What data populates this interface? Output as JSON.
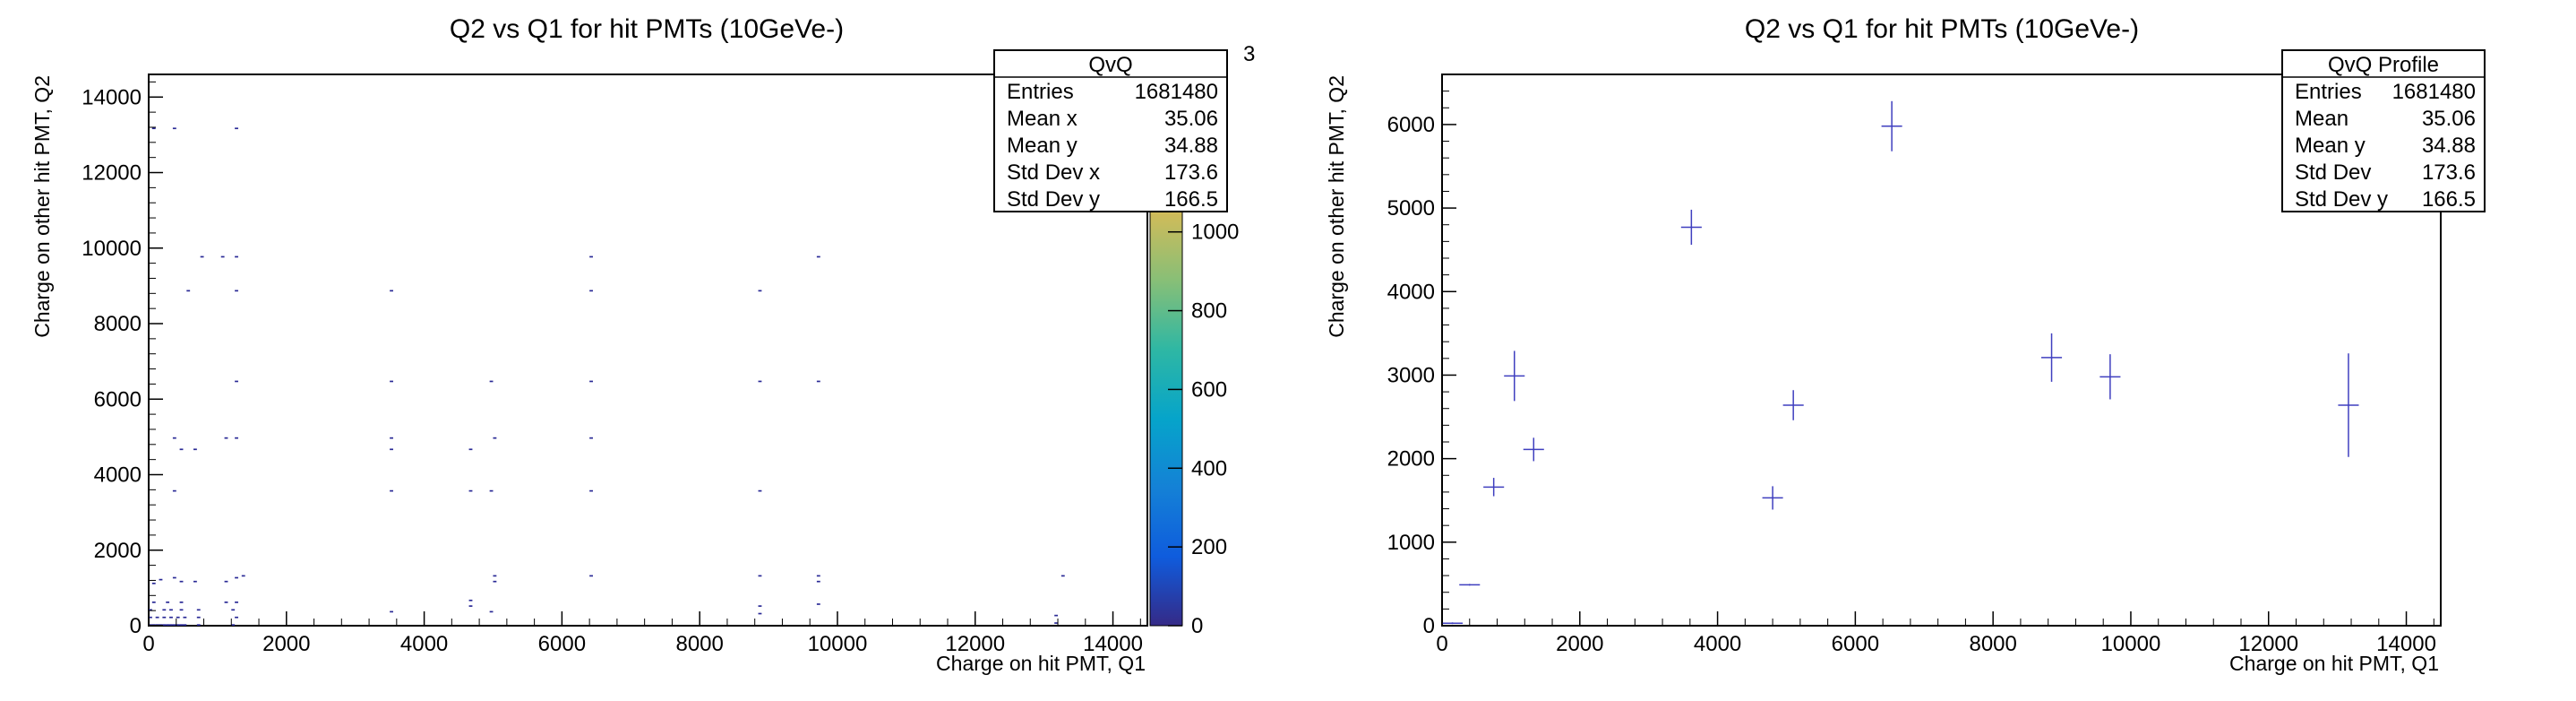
{
  "chart_data": [
    {
      "type": "heatmap",
      "title": "Q2 vs Q1 for hit PMTs (10GeVe-)",
      "xlabel": "Charge on hit PMT, Q1",
      "ylabel": "Charge on other hit PMT, Q2",
      "xlim": [
        0,
        14500
      ],
      "ylim": [
        0,
        14600
      ],
      "x_ticks": [
        0,
        2000,
        4000,
        6000,
        8000,
        10000,
        12000,
        14000
      ],
      "y_ticks": [
        0,
        2000,
        4000,
        6000,
        8000,
        10000,
        12000,
        14000
      ],
      "grid": false,
      "colorbar": {
        "ticks": [
          "0",
          "200",
          "400",
          "600",
          "800",
          "1000"
        ],
        "exponent_label": "3",
        "palette": [
          "#352a87",
          "#0f5cdd",
          "#1481d6",
          "#06a4ca",
          "#2eb7a4",
          "#87bf77",
          "#d1bb59",
          "#fec832",
          "#f9fb0e"
        ]
      },
      "cell_color": "#2a2a96",
      "cells": [
        [
          0,
          0
        ],
        [
          50,
          0
        ],
        [
          100,
          0
        ],
        [
          150,
          0
        ],
        [
          200,
          0
        ],
        [
          250,
          0
        ],
        [
          300,
          0
        ],
        [
          350,
          0
        ],
        [
          400,
          0
        ],
        [
          450,
          0
        ],
        [
          500,
          0
        ],
        [
          0,
          200
        ],
        [
          100,
          200
        ],
        [
          200,
          200
        ],
        [
          300,
          200
        ],
        [
          400,
          200
        ],
        [
          500,
          200
        ],
        [
          0,
          400
        ],
        [
          200,
          400
        ],
        [
          300,
          400
        ],
        [
          450,
          400
        ],
        [
          50,
          600
        ],
        [
          250,
          600
        ],
        [
          450,
          600
        ],
        [
          700,
          0
        ],
        [
          700,
          200
        ],
        [
          700,
          400
        ],
        [
          1200,
          0
        ],
        [
          1250,
          200
        ],
        [
          1200,
          400
        ],
        [
          1250,
          600
        ],
        [
          1100,
          600
        ],
        [
          50,
          1100
        ],
        [
          150,
          1200
        ],
        [
          350,
          1250
        ],
        [
          450,
          1150
        ],
        [
          650,
          1150
        ],
        [
          1100,
          1150
        ],
        [
          1250,
          1250
        ],
        [
          1350,
          1300
        ],
        [
          3500,
          350
        ],
        [
          4650,
          500
        ],
        [
          4650,
          650
        ],
        [
          4950,
          350
        ],
        [
          5000,
          1150
        ],
        [
          5000,
          1300
        ],
        [
          6400,
          1300
        ],
        [
          8850,
          300
        ],
        [
          8850,
          500
        ],
        [
          8850,
          1300
        ],
        [
          9700,
          550
        ],
        [
          9700,
          1150
        ],
        [
          9700,
          1300
        ],
        [
          13150,
          50
        ],
        [
          13150,
          250
        ],
        [
          13250,
          1300
        ],
        [
          350,
          3550
        ],
        [
          3500,
          3550
        ],
        [
          4650,
          3550
        ],
        [
          4950,
          3550
        ],
        [
          6400,
          3550
        ],
        [
          8850,
          3550
        ],
        [
          450,
          4650
        ],
        [
          650,
          4650
        ],
        [
          4650,
          4650
        ],
        [
          3500,
          4650
        ],
        [
          350,
          4950
        ],
        [
          1100,
          4950
        ],
        [
          1250,
          4950
        ],
        [
          3500,
          4950
        ],
        [
          5000,
          4950
        ],
        [
          6400,
          4950
        ],
        [
          1250,
          6450
        ],
        [
          3500,
          6450
        ],
        [
          4950,
          6450
        ],
        [
          6400,
          6450
        ],
        [
          8850,
          6450
        ],
        [
          9700,
          6450
        ],
        [
          550,
          8850
        ],
        [
          1250,
          8850
        ],
        [
          3500,
          8850
        ],
        [
          6400,
          8850
        ],
        [
          8850,
          8850
        ],
        [
          750,
          9750
        ],
        [
          1050,
          9750
        ],
        [
          1250,
          9750
        ],
        [
          6400,
          9750
        ],
        [
          9700,
          9750
        ],
        [
          50,
          13150
        ],
        [
          350,
          13150
        ],
        [
          1250,
          13150
        ]
      ]
    },
    {
      "type": "scatter",
      "title": "Q2 vs Q1 for hit PMTs (10GeVe-)",
      "xlabel": "Charge on hit PMT, Q1",
      "ylabel": "Charge on other hit PMT, Q2",
      "xlim": [
        0,
        14500
      ],
      "ylim": [
        0,
        6600
      ],
      "x_ticks": [
        0,
        2000,
        4000,
        6000,
        8000,
        10000,
        12000,
        14000
      ],
      "y_ticks": [
        0,
        1000,
        2000,
        3000,
        4000,
        5000,
        6000
      ],
      "grid": false,
      "marker_color": "#3f3fbf",
      "points": [
        {
          "x": 150,
          "y": 30,
          "xerr": 150,
          "yerr": 10
        },
        {
          "x": 400,
          "y": 490,
          "xerr": 150,
          "yerr": 10
        },
        {
          "x": 750,
          "y": 1660,
          "xerr": 150,
          "yerr": 110
        },
        {
          "x": 1050,
          "y": 2990,
          "xerr": 150,
          "yerr": 300
        },
        {
          "x": 1330,
          "y": 2110,
          "xerr": 150,
          "yerr": 140
        },
        {
          "x": 3620,
          "y": 4770,
          "xerr": 150,
          "yerr": 210
        },
        {
          "x": 4800,
          "y": 1530,
          "xerr": 150,
          "yerr": 140
        },
        {
          "x": 5100,
          "y": 2640,
          "xerr": 150,
          "yerr": 180
        },
        {
          "x": 6530,
          "y": 5980,
          "xerr": 150,
          "yerr": 300
        },
        {
          "x": 8850,
          "y": 3210,
          "xerr": 150,
          "yerr": 290
        },
        {
          "x": 9700,
          "y": 2980,
          "xerr": 150,
          "yerr": 270
        },
        {
          "x": 13160,
          "y": 2640,
          "xerr": 150,
          "yerr": 620
        }
      ]
    }
  ],
  "stats_left": {
    "name": "QvQ",
    "rows": [
      {
        "label": "Entries",
        "value": "1681480"
      },
      {
        "label": "Mean x",
        "value": "35.06"
      },
      {
        "label": "Mean y",
        "value": "34.88"
      },
      {
        "label": "Std Dev x",
        "value": "173.6"
      },
      {
        "label": "Std Dev y",
        "value": "166.5"
      }
    ]
  },
  "stats_right": {
    "name": "QvQ Profile",
    "rows": [
      {
        "label": "Entries",
        "value": "1681480"
      },
      {
        "label": "Mean",
        "value": "35.06"
      },
      {
        "label": "Mean y",
        "value": "34.88"
      },
      {
        "label": "Std Dev",
        "value": "173.6"
      },
      {
        "label": "Std Dev y",
        "value": "166.5"
      }
    ]
  }
}
